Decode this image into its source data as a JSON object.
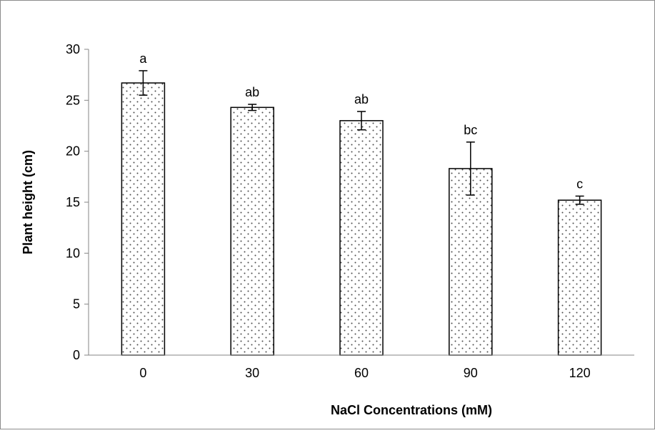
{
  "chart_data": {
    "type": "bar",
    "categories": [
      "0",
      "30",
      "60",
      "90",
      "120"
    ],
    "values": [
      26.7,
      24.3,
      23.0,
      18.3,
      15.2
    ],
    "errors": [
      1.2,
      0.3,
      0.9,
      2.6,
      0.4
    ],
    "significance_labels": [
      "a",
      "ab",
      "ab",
      "bc",
      "c"
    ],
    "xlabel": "NaCl Concentrations (mM)",
    "ylabel": "Plant height (cm)",
    "ylim": [
      0,
      30
    ],
    "yticks": [
      "0",
      "5",
      "10",
      "15",
      "20",
      "25",
      "30"
    ],
    "grid": false,
    "legend": "none",
    "bar_fill": "dotted pattern",
    "colors": {
      "bar_border": "#000000",
      "dot": "#4a4a4a",
      "axis": "#868686",
      "frame": "#8c8c8c"
    }
  }
}
